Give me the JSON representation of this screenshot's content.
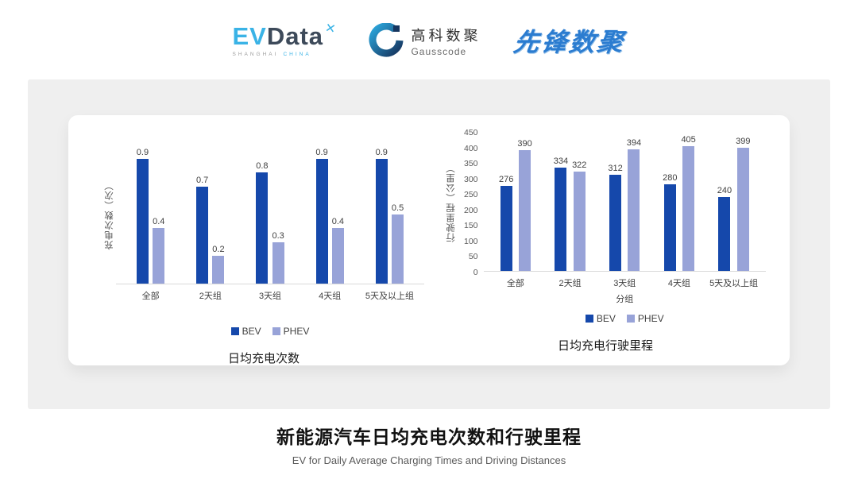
{
  "header": {
    "evdata": {
      "ev": "EV",
      "data": "Data",
      "mark_glyph": "✕",
      "sub_left": "SHANGHAI",
      "sub_right": "CHINA"
    },
    "gausscode": {
      "cn": "高科数聚",
      "en": "Gausscode"
    },
    "pioneer": {
      "text": "先锋数聚"
    }
  },
  "colors": {
    "bev": "#1548ab",
    "phev": "#98a3d8",
    "panel_bg": "#efefef",
    "baseline": "#d9d9d9",
    "gauss_navy": "#16355f",
    "gauss_teal": "#2ba7dd",
    "evdata_blue": "#3ab3e6",
    "pioneer_blue": "#2b7cd0"
  },
  "chart_data": [
    {
      "type": "bar",
      "title": "日均充电次数",
      "categories": [
        "全部",
        "2天组",
        "3天组",
        "4天组",
        "5天及以上组"
      ],
      "series": [
        {
          "name": "BEV",
          "color": "#1548ab",
          "values": [
            0.9,
            0.7,
            0.8,
            0.9,
            0.9
          ]
        },
        {
          "name": "PHEV",
          "color": "#98a3d8",
          "values": [
            0.4,
            0.2,
            0.3,
            0.4,
            0.5
          ]
        }
      ],
      "xlabel": "",
      "ylabel": "充电次数（次）",
      "ylim": [
        0,
        1
      ],
      "yticks": [],
      "grid": false,
      "legend_position": "bottom"
    },
    {
      "type": "bar",
      "title": "日均充电行驶里程",
      "categories": [
        "全部",
        "2天组",
        "3天组",
        "4天组",
        "5天及以上组"
      ],
      "series": [
        {
          "name": "BEV",
          "color": "#1548ab",
          "values": [
            276,
            334,
            312,
            280,
            240
          ]
        },
        {
          "name": "PHEV",
          "color": "#98a3d8",
          "values": [
            390,
            322,
            394,
            405,
            399
          ]
        }
      ],
      "xlabel": "分组",
      "ylabel": "行驶里程（公里）",
      "ylim": [
        0,
        450
      ],
      "yticks": [
        "450",
        "400",
        "350",
        "300",
        "250",
        "200",
        "150",
        "100",
        "50",
        "0"
      ],
      "grid": false,
      "legend_position": "bottom"
    }
  ],
  "footer": {
    "title": "新能源汽车日均充电次数和行驶里程",
    "subtitle": "EV for Daily Average Charging Times and Driving Distances"
  }
}
